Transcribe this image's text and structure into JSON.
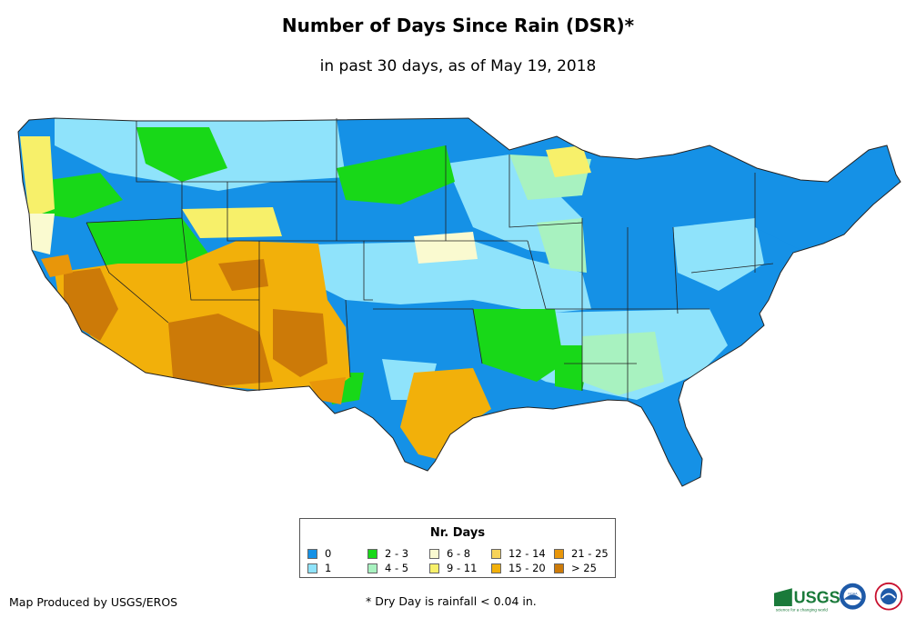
{
  "title": "Number of Days Since Rain (DSR)*",
  "subtitle": "in past 30 days, as of May 19, 2018",
  "legend": {
    "title": "Nr. Days",
    "items": [
      {
        "label": "0",
        "color": "#1591e6"
      },
      {
        "label": "1",
        "color": "#8fe3fb"
      },
      {
        "label": "2 - 3",
        "color": "#18d818"
      },
      {
        "label": "4 - 5",
        "color": "#a8f2c0"
      },
      {
        "label": "6 - 8",
        "color": "#fafad0"
      },
      {
        "label": "9 - 11",
        "color": "#f7f06a"
      },
      {
        "label": "12 - 14",
        "color": "#f7d35a"
      },
      {
        "label": "15 - 20",
        "color": "#f2b00a"
      },
      {
        "label": "21 - 25",
        "color": "#e8960a"
      },
      {
        "label": "> 25",
        "color": "#cc7a08"
      }
    ]
  },
  "footer": {
    "producer": "Map Produced by USGS/EROS",
    "note": "* Dry Day is rainfall < 0.04 in."
  },
  "logos": {
    "usgs_text": "USGS",
    "usgs_tagline": "science for a changing world",
    "noaa_text": "NOAA"
  }
}
